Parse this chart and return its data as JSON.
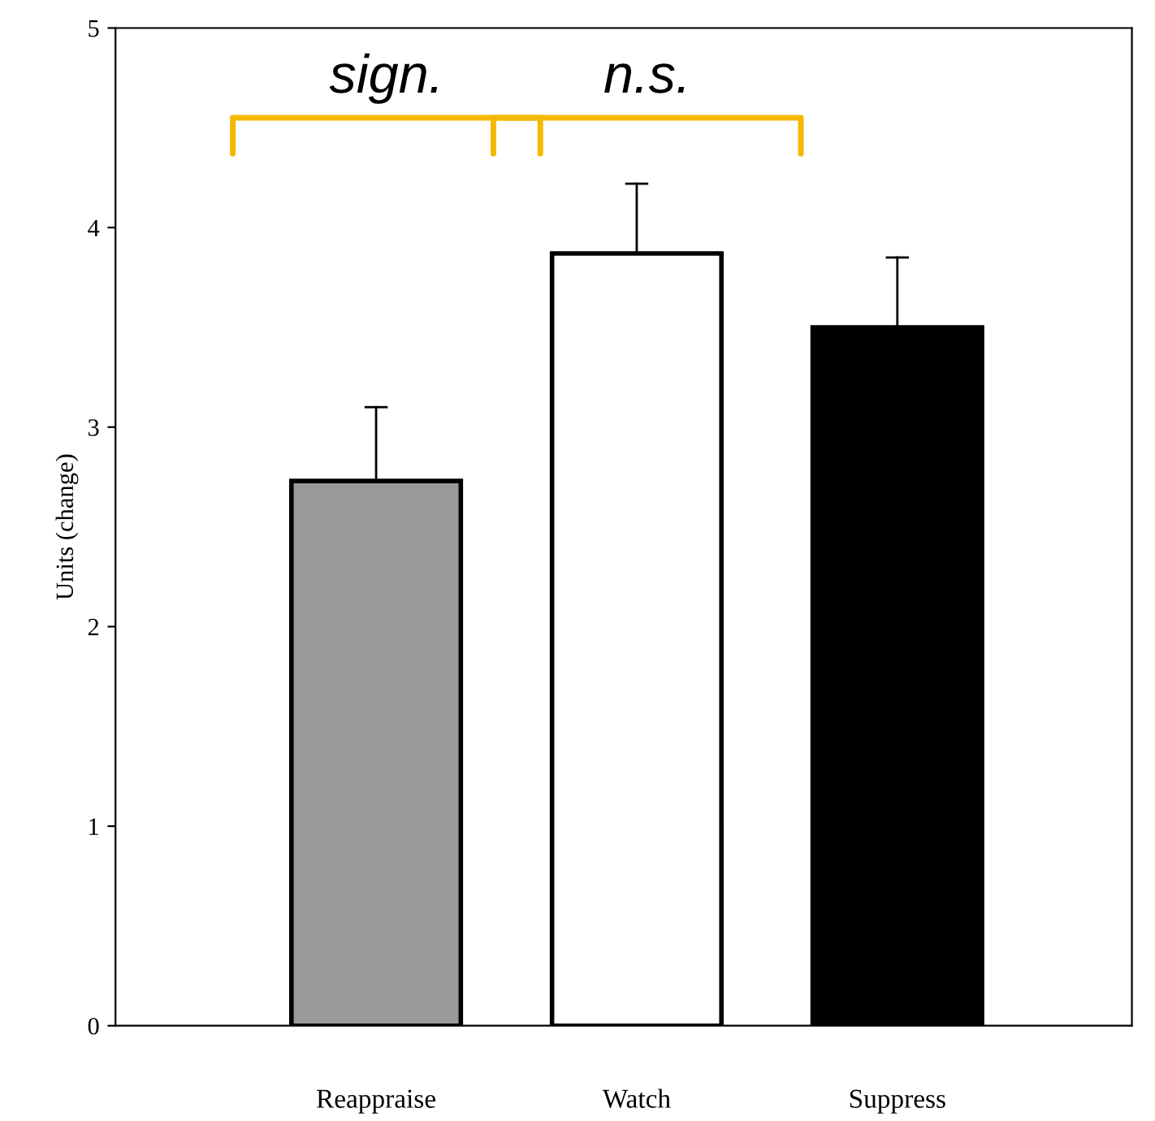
{
  "chart_data": {
    "type": "bar",
    "ylabel": "Units (change)",
    "categories": [
      "Reappraise",
      "Watch",
      "Suppress"
    ],
    "values": [
      2.73,
      3.87,
      3.5
    ],
    "colors": [
      "#9a9a9a",
      "#ffffff",
      "#000000"
    ],
    "errors": [
      [
        2.73,
        3.1
      ],
      [
        3.87,
        4.22
      ],
      [
        3.5,
        3.85
      ]
    ],
    "ylim": [
      0,
      5
    ],
    "yticks": [
      0,
      1,
      2,
      3,
      4,
      5
    ],
    "grid": false,
    "legend": false,
    "annotations": [
      "sign.",
      "n.s."
    ]
  }
}
